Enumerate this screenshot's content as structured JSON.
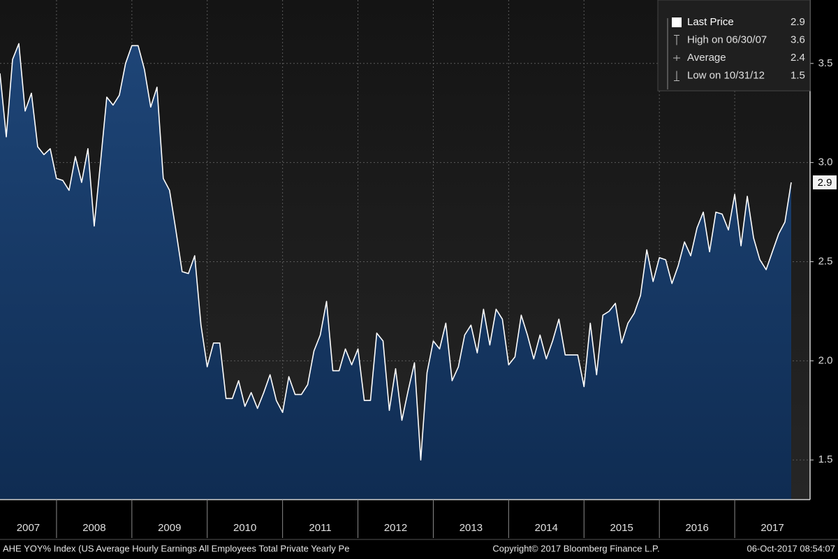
{
  "chart_data": {
    "type": "area",
    "x": [
      "2007-03",
      "2007-04",
      "2007-05",
      "2007-06",
      "2007-07",
      "2007-08",
      "2007-09",
      "2007-10",
      "2007-11",
      "2007-12",
      "2008-01",
      "2008-02",
      "2008-03",
      "2008-04",
      "2008-05",
      "2008-06",
      "2008-07",
      "2008-08",
      "2008-09",
      "2008-10",
      "2008-11",
      "2008-12",
      "2009-01",
      "2009-02",
      "2009-03",
      "2009-04",
      "2009-05",
      "2009-06",
      "2009-07",
      "2009-08",
      "2009-09",
      "2009-10",
      "2009-11",
      "2009-12",
      "2010-01",
      "2010-02",
      "2010-03",
      "2010-04",
      "2010-05",
      "2010-06",
      "2010-07",
      "2010-08",
      "2010-09",
      "2010-10",
      "2010-11",
      "2010-12",
      "2011-01",
      "2011-02",
      "2011-03",
      "2011-04",
      "2011-05",
      "2011-06",
      "2011-07",
      "2011-08",
      "2011-09",
      "2011-10",
      "2011-11",
      "2011-12",
      "2012-01",
      "2012-02",
      "2012-03",
      "2012-04",
      "2012-05",
      "2012-06",
      "2012-07",
      "2012-08",
      "2012-09",
      "2012-10",
      "2012-11",
      "2012-12",
      "2013-01",
      "2013-02",
      "2013-03",
      "2013-04",
      "2013-05",
      "2013-06",
      "2013-07",
      "2013-08",
      "2013-09",
      "2013-10",
      "2013-11",
      "2013-12",
      "2014-01",
      "2014-02",
      "2014-03",
      "2014-04",
      "2014-05",
      "2014-06",
      "2014-07",
      "2014-08",
      "2014-09",
      "2014-10",
      "2014-11",
      "2014-12",
      "2015-01",
      "2015-02",
      "2015-03",
      "2015-04",
      "2015-05",
      "2015-06",
      "2015-07",
      "2015-08",
      "2015-09",
      "2015-10",
      "2015-11",
      "2015-12",
      "2016-01",
      "2016-02",
      "2016-03",
      "2016-04",
      "2016-05",
      "2016-06",
      "2016-07",
      "2016-08",
      "2016-09",
      "2016-10",
      "2016-11",
      "2016-12",
      "2017-01",
      "2017-02",
      "2017-03",
      "2017-04",
      "2017-05",
      "2017-06",
      "2017-07",
      "2017-08",
      "2017-09"
    ],
    "values": [
      3.45,
      3.13,
      3.52,
      3.6,
      3.26,
      3.35,
      3.08,
      3.04,
      3.07,
      2.92,
      2.91,
      2.86,
      3.03,
      2.9,
      3.07,
      2.68,
      3.0,
      3.33,
      3.29,
      3.34,
      3.5,
      3.59,
      3.59,
      3.47,
      3.28,
      3.38,
      2.92,
      2.86,
      2.66,
      2.45,
      2.44,
      2.53,
      2.18,
      1.97,
      2.09,
      2.09,
      1.81,
      1.81,
      1.9,
      1.77,
      1.84,
      1.76,
      1.84,
      1.93,
      1.8,
      1.74,
      1.92,
      1.83,
      1.83,
      1.88,
      2.05,
      2.13,
      2.3,
      1.95,
      1.95,
      2.06,
      1.98,
      2.06,
      1.8,
      1.8,
      2.14,
      2.1,
      1.75,
      1.96,
      1.7,
      1.85,
      1.99,
      1.5,
      1.94,
      2.1,
      2.06,
      2.19,
      1.9,
      1.97,
      2.13,
      2.18,
      2.04,
      2.26,
      2.08,
      2.26,
      2.21,
      1.98,
      2.02,
      2.23,
      2.13,
      2.01,
      2.13,
      2.01,
      2.1,
      2.21,
      2.03,
      2.03,
      2.03,
      1.87,
      2.19,
      1.93,
      2.23,
      2.25,
      2.29,
      2.09,
      2.19,
      2.24,
      2.33,
      2.56,
      2.4,
      2.52,
      2.51,
      2.39,
      2.48,
      2.6,
      2.53,
      2.67,
      2.75,
      2.55,
      2.75,
      2.74,
      2.66,
      2.84,
      2.58,
      2.83,
      2.62,
      2.51,
      2.46,
      2.55,
      2.64,
      2.7,
      2.9
    ],
    "color": "#ffffff",
    "fill": "#163a66",
    "xlim": [
      "2007-03",
      "2017-12"
    ],
    "xticks": [
      2007,
      2008,
      2009,
      2010,
      2011,
      2012,
      2013,
      2014,
      2015,
      2016,
      2017
    ],
    "ylim": [
      1.3,
      3.82
    ],
    "yticks": [
      1.5,
      {
        "value": 2,
        "label": "2.0"
      },
      2.5,
      {
        "value": 3,
        "label": "3.0"
      },
      3.5
    ],
    "grid": true,
    "legend_position": "top-right",
    "stats": [
      {
        "label": "Last Price",
        "value": 2.9
      },
      {
        "label": "High on 06/30/07",
        "value": 3.6
      },
      {
        "label": "Average",
        "value": 2.4
      },
      {
        "label": "Low on 10/31/12",
        "value": 1.5
      }
    ],
    "footer_left": "AHE YOY% Index (US Average Hourly Earnings All Employees Total Private Yearly Pe",
    "footer_center": "Copyright© 2017 Bloomberg Finance L.P.",
    "footer_right": "06-Oct-2017 08:54:07"
  }
}
